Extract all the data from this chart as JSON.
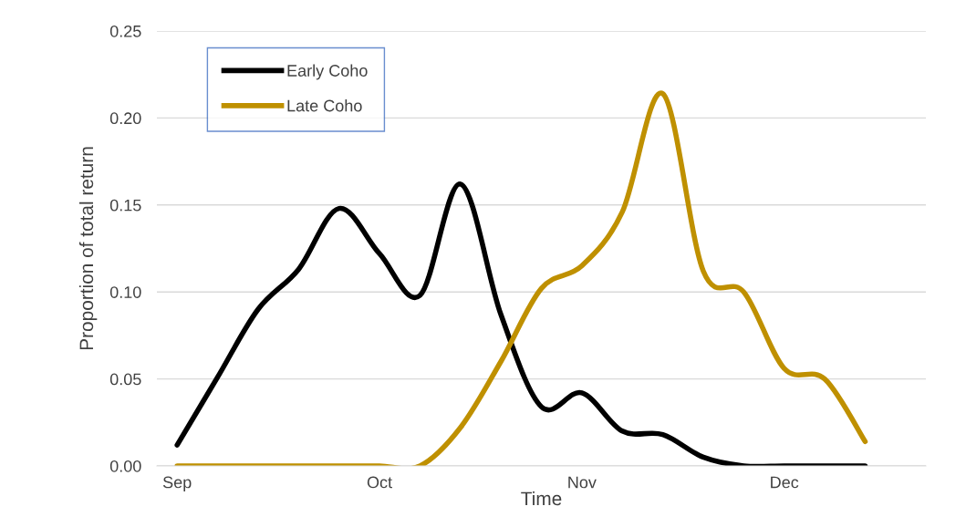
{
  "chart_data": {
    "type": "line",
    "xlabel": "Time",
    "ylabel": "Proportion of total return",
    "categories": [
      "Sep",
      null,
      null,
      null,
      null,
      "Oct",
      null,
      null,
      null,
      null,
      "Nov",
      null,
      null,
      null,
      null,
      "Dec",
      null,
      null,
      null
    ],
    "series": [
      {
        "name": "Early Coho",
        "color": "#000000",
        "values": [
          0.012,
          0.051,
          0.09,
          0.113,
          0.148,
          0.122,
          0.098,
          0.162,
          0.087,
          0.034,
          0.042,
          0.02,
          0.018,
          0.005,
          0,
          0,
          0,
          0,
          null
        ]
      },
      {
        "name": "Late Coho",
        "color": "#bf9000",
        "values": [
          0,
          0,
          0,
          0,
          0,
          0,
          0,
          0.022,
          0.06,
          0.102,
          0.115,
          0.146,
          0.214,
          0.112,
          0.1,
          0.056,
          0.05,
          0.014,
          null
        ]
      }
    ],
    "ylim": [
      0,
      0.25
    ],
    "yticks": [
      {
        "value": 0,
        "label": "0.00"
      },
      {
        "value": 0.05,
        "label": "0.05"
      },
      {
        "value": 0.1,
        "label": "0.10"
      },
      {
        "value": 0.15,
        "label": "0.15"
      },
      {
        "value": 0.2,
        "label": "0.20"
      },
      {
        "value": 0.25,
        "label": "0.25"
      }
    ],
    "grid": "y",
    "legend": "top left",
    "marker": "none",
    "line_style": "solid"
  }
}
